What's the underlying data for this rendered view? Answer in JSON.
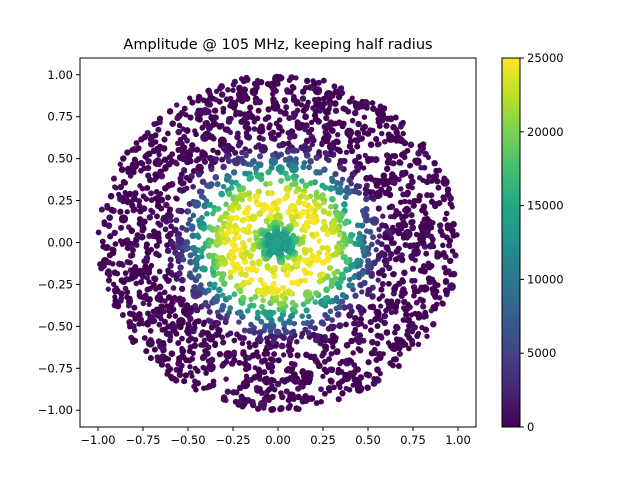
{
  "chart_data": {
    "type": "scatter",
    "title": "Amplitude @ 105 MHz, keeping half radius",
    "xlabel": "",
    "ylabel": "",
    "xlim": [
      -1.1,
      1.1
    ],
    "ylim": [
      -1.1,
      1.1
    ],
    "x_ticks": [
      -1.0,
      -0.75,
      -0.5,
      -0.25,
      0.0,
      0.25,
      0.5,
      0.75,
      1.0
    ],
    "x_tick_labels": [
      "−1.00",
      "−0.75",
      "−0.50",
      "−0.25",
      "0.00",
      "0.25",
      "0.50",
      "0.75",
      "1.00"
    ],
    "y_ticks": [
      -1.0,
      -0.75,
      -0.5,
      -0.25,
      0.0,
      0.25,
      0.5,
      0.75,
      1.0
    ],
    "y_tick_labels": [
      "−1.00",
      "−0.75",
      "−0.50",
      "−0.25",
      "0.00",
      "0.25",
      "0.50",
      "0.75",
      "1.00"
    ],
    "grid": false,
    "colormap": "viridis",
    "colorbar": {
      "min": 0,
      "max": 25000,
      "ticks": [
        0,
        5000,
        10000,
        15000,
        20000,
        25000
      ],
      "tick_labels": [
        "0",
        "5000",
        "10000",
        "15000",
        "20000",
        "25000"
      ]
    },
    "point_cloud": {
      "shape": "disc",
      "radius": 1.0,
      "approx_count": 2600,
      "amplitude_profile": [
        {
          "r": 0.0,
          "value": 13000
        },
        {
          "r": 0.06,
          "value": 14000
        },
        {
          "r": 0.1,
          "value": 18500
        },
        {
          "r": 0.15,
          "value": 23000
        },
        {
          "r": 0.22,
          "value": 25000
        },
        {
          "r": 0.3,
          "value": 24000
        },
        {
          "r": 0.36,
          "value": 20000
        },
        {
          "r": 0.42,
          "value": 15000
        },
        {
          "r": 0.47,
          "value": 9500
        },
        {
          "r": 0.52,
          "value": 5000
        },
        {
          "r": 0.58,
          "value": 1500
        },
        {
          "r": 0.65,
          "value": 0
        },
        {
          "r": 1.0,
          "value": 0
        }
      ],
      "central_star_arms": 8
    }
  }
}
